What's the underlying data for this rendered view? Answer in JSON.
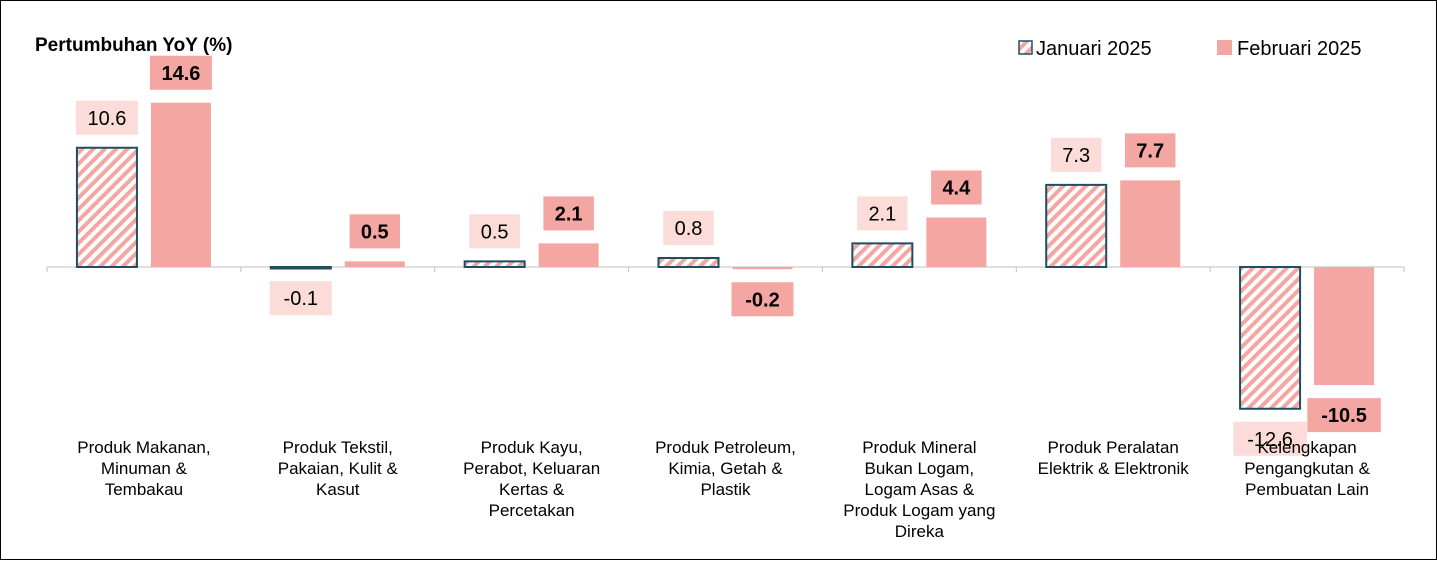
{
  "chart_data": {
    "type": "bar",
    "title": "Pertumbuhan YoY (%)",
    "categories": [
      [
        "Produk Makanan,",
        "Minuman &",
        "Tembakau"
      ],
      [
        "Produk Tekstil,",
        "Pakaian, Kulit &",
        "Kasut"
      ],
      [
        "Produk Kayu,",
        "Perabot, Keluaran",
        "Kertas &",
        "Percetakan"
      ],
      [
        "Produk Petroleum,",
        "Kimia, Getah &",
        "Plastik"
      ],
      [
        "Produk Mineral",
        "Bukan Logam,",
        "Logam Asas &",
        "Produk Logam yang",
        "Direka"
      ],
      [
        "Produk Peralatan",
        "Elektrik & Elektronik"
      ],
      [
        "Kelengkapan",
        "Pengangkutan &",
        "Pembuatan Lain"
      ]
    ],
    "series": [
      {
        "name": "Januari 2025",
        "values": [
          10.6,
          -0.1,
          0.5,
          0.8,
          2.1,
          7.3,
          -12.6
        ],
        "labels": [
          "10.6",
          "-0.1",
          "0.5",
          "0.8",
          "2.1",
          "7.3",
          "-12.6"
        ],
        "style": "hatched",
        "stroke": "#1f4e5f",
        "hatch_color": "#f4a6a2",
        "label_bg": "#fcdcd9",
        "label_bold": false
      },
      {
        "name": "Februari 2025",
        "values": [
          14.6,
          0.5,
          2.1,
          -0.2,
          4.4,
          7.7,
          -10.5
        ],
        "labels": [
          "14.6",
          "0.5",
          "2.1",
          "-0.2",
          "4.4",
          "7.7",
          "-10.5"
        ],
        "style": "solid",
        "fill": "#f4a6a2",
        "label_bg": "#f4a6a2",
        "label_bold": true
      }
    ],
    "ylim": [
      -15.5,
      18.7
    ],
    "legend_position": "top-right",
    "grid": false
  }
}
